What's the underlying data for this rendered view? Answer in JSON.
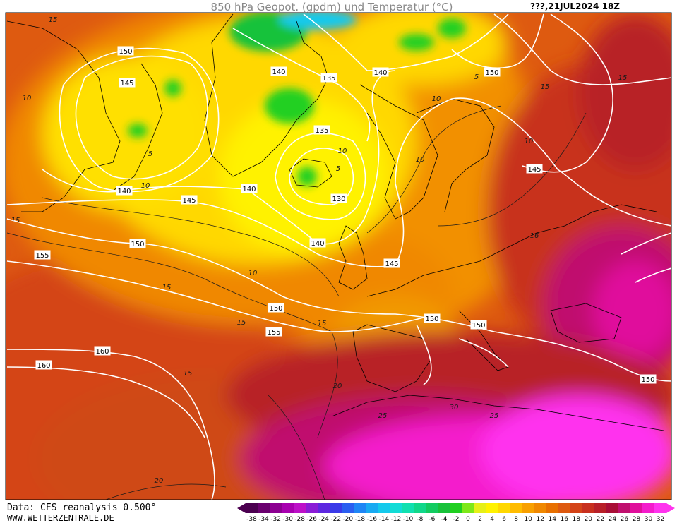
{
  "title": "850 hPa Geopot. (gpdm) und Temperatur (°C)",
  "datetime": "???,21JUL2024 18Z",
  "footer": {
    "source": "Data: CFS reanalysis 0.500°",
    "website": "WWW.WETTERZENTRALE.DE"
  },
  "geopotential_labels": [
    {
      "text": "150",
      "region": "greenland-west"
    },
    {
      "text": "145",
      "region": "baffin"
    },
    {
      "text": "140",
      "region": "greenland-north"
    },
    {
      "text": "135",
      "region": "greenland-east"
    },
    {
      "text": "140",
      "region": "svalbard"
    },
    {
      "text": "150",
      "region": "barents"
    },
    {
      "text": "135",
      "region": "iceland-north"
    },
    {
      "text": "130",
      "region": "iceland-south"
    },
    {
      "text": "140",
      "region": "labrador"
    },
    {
      "text": "140",
      "region": "irminger"
    },
    {
      "text": "145",
      "region": "newfoundland"
    },
    {
      "text": "150",
      "region": "atlantic-west"
    },
    {
      "text": "140",
      "region": "rockall"
    },
    {
      "text": "145",
      "region": "north-sea"
    },
    {
      "text": "145",
      "region": "russia"
    },
    {
      "text": "155",
      "region": "atlantic-far-west"
    },
    {
      "text": "150",
      "region": "biscay"
    },
    {
      "text": "150",
      "region": "alps"
    },
    {
      "text": "150",
      "region": "balkans"
    },
    {
      "text": "155",
      "region": "azores"
    },
    {
      "text": "160",
      "region": "subtropics-west"
    },
    {
      "text": "160",
      "region": "subtropics-far-west"
    },
    {
      "text": "150",
      "region": "middle-east"
    }
  ],
  "temperature_labels": [
    {
      "text": "15",
      "region": "west-top"
    },
    {
      "text": "10",
      "region": "greenland-west"
    },
    {
      "text": "5",
      "region": "baffin"
    },
    {
      "text": "10",
      "region": "labrador"
    },
    {
      "text": "5",
      "region": "iceland"
    },
    {
      "text": "10",
      "region": "iceland-east"
    },
    {
      "text": "10",
      "region": "norway"
    },
    {
      "text": "10",
      "region": "finland"
    },
    {
      "text": "5",
      "region": "svalbard"
    },
    {
      "text": "10",
      "region": "russia-north"
    },
    {
      "text": "15",
      "region": "russia-east"
    },
    {
      "text": "15",
      "region": "urals"
    },
    {
      "text": "15",
      "region": "atlantic-west"
    },
    {
      "text": "10",
      "region": "rockall"
    },
    {
      "text": "15",
      "region": "biscay"
    },
    {
      "text": "15",
      "region": "atlantic-central"
    },
    {
      "text": "15",
      "region": "bay"
    },
    {
      "text": "16",
      "region": "poland"
    },
    {
      "text": "15",
      "region": "atlantic-south"
    },
    {
      "text": "20",
      "region": "iberia"
    },
    {
      "text": "25",
      "region": "morocco"
    },
    {
      "text": "30",
      "region": "sahara"
    },
    {
      "text": "25",
      "region": "libya"
    },
    {
      "text": "20",
      "region": "atlantic-bottom"
    }
  ],
  "color_scale": {
    "ticks": [
      "-38",
      "-34",
      "-32",
      "-30",
      "-28",
      "-26",
      "-24",
      "-22",
      "-20",
      "-18",
      "-16",
      "-14",
      "-12",
      "-10",
      "-8",
      "-6",
      "-4",
      "-2",
      "0",
      "2",
      "4",
      "6",
      "8",
      "10",
      "12",
      "14",
      "16",
      "18",
      "20",
      "22",
      "24",
      "26",
      "28",
      "30",
      "32"
    ],
    "colors": [
      "#4b0050",
      "#6a006f",
      "#8c0091",
      "#a800b0",
      "#bd10c8",
      "#8a1cd6",
      "#5d28e0",
      "#3a3ae8",
      "#2a5ef0",
      "#1e86f5",
      "#18aaf2",
      "#14c9ec",
      "#12dcd6",
      "#10e0b0",
      "#10d88a",
      "#12cc60",
      "#18c23a",
      "#20d020",
      "#7ee818",
      "#e6f018",
      "#fff200",
      "#ffd800",
      "#ffbc00",
      "#f8a000",
      "#f08800",
      "#e87000",
      "#de5a10",
      "#d44418",
      "#c8301e",
      "#b82028",
      "#a80f36",
      "#c0106e",
      "#e0109c",
      "#f41ccc",
      "#ff33ee"
    ]
  },
  "colors": {
    "frame": "#000000",
    "iso_line": "#ffffff",
    "title": "#888888"
  }
}
